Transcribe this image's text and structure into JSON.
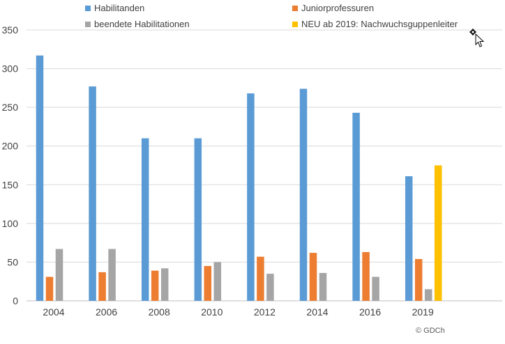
{
  "chart_data": {
    "type": "bar",
    "categories": [
      "2004",
      "2006",
      "2008",
      "2010",
      "2012",
      "2014",
      "2016",
      "2019"
    ],
    "series": [
      {
        "name": "Habilitanden",
        "color": "#5b9bd5",
        "values": [
          317,
          277,
          210,
          210,
          268,
          274,
          243,
          161
        ]
      },
      {
        "name": "Juniorprofessuren",
        "color": "#ed7d31",
        "values": [
          31,
          37,
          39,
          45,
          57,
          62,
          63,
          54
        ]
      },
      {
        "name": "beendete Habilitationen",
        "color": "#a5a5a5",
        "values": [
          67,
          67,
          42,
          50,
          35,
          36,
          31,
          15
        ]
      },
      {
        "name": "NEU ab 2019: Nachwuchsguppenleiter",
        "color": "#ffc000",
        "values": [
          null,
          null,
          null,
          null,
          null,
          null,
          null,
          175
        ]
      }
    ],
    "ylim": [
      0,
      350
    ],
    "yticks": [
      0,
      50,
      100,
      150,
      200,
      250,
      300,
      350
    ],
    "grid": true,
    "legend_position": "top",
    "xlabel": "",
    "ylabel": ""
  },
  "copyright": "© GDCh"
}
